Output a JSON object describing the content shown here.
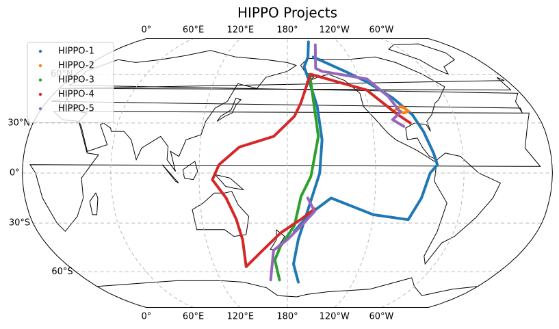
{
  "chart_data": {
    "type": "map",
    "title": "HIPPO Projects",
    "xticks": [
      {
        "value": 0,
        "label": "0°"
      },
      {
        "value": 60,
        "label": "60°E"
      },
      {
        "value": 120,
        "label": "120°E"
      },
      {
        "value": 180,
        "label": "180°"
      },
      {
        "value": -120,
        "label": "120°W"
      },
      {
        "value": -60,
        "label": "60°W"
      }
    ],
    "yticks": [
      {
        "value": 60,
        "label": "60°N"
      },
      {
        "value": 30,
        "label": "30°N"
      },
      {
        "value": 0,
        "label": "0°"
      },
      {
        "value": -30,
        "label": "30°S"
      },
      {
        "value": -60,
        "label": "60°S"
      }
    ],
    "grid": true,
    "legend": "upper left",
    "series": [
      {
        "name": "HIPPO-1",
        "color": "#1f77b4",
        "lon": [
          -155,
          -160,
          -165,
          -162,
          -158,
          -156,
          -158,
          -165,
          -172,
          -175,
          -170,
          null,
          -155,
          -130,
          -115,
          -100,
          -90,
          -85,
          -80,
          -78,
          -83,
          -88,
          -95,
          -120,
          -150,
          -165,
          -175
        ],
        "lat": [
          85,
          72,
          65,
          55,
          40,
          20,
          0,
          -20,
          -40,
          -55,
          -67,
          null,
          72,
          62,
          55,
          45,
          35,
          25,
          12,
          5,
          0,
          -15,
          -28,
          -25,
          -15,
          -25,
          -35
        ]
      },
      {
        "name": "HIPPO-2",
        "color": "#ff7f0e",
        "lon": [
          -101,
          -97,
          -94,
          -92,
          -96,
          -99
        ],
        "lat": [
          38,
          40,
          39,
          37,
          36,
          38
        ]
      },
      {
        "name": "HIPPO-3",
        "color": "#2ca02c",
        "lon": [
          -161,
          -158.5,
          -164,
          -170.6,
          -175,
          174.8,
          170,
          173
        ],
        "lat": [
          60,
          22,
          -2,
          -14,
          -31.5,
          -44,
          -52.5,
          -65.5
        ]
      },
      {
        "name": "HIPPO-4",
        "color": "#d62728",
        "lon": [
          -161,
          -170,
          -175,
          170.5,
          147,
          133.5,
          129,
          138,
          144,
          147,
          146,
          159,
          175,
          -170,
          -161,
          null,
          -160,
          -118,
          -101,
          -93
        ],
        "lat": [
          59,
          42,
          34,
          22,
          15.6,
          5,
          -4,
          -15,
          -27.5,
          -40,
          -56.7,
          -48,
          -36,
          -27.5,
          -21.5,
          null,
          60,
          50,
          35.5,
          30
        ]
      },
      {
        "name": "HIPPO-5",
        "color": "#9467bd",
        "lon": [
          -148.5,
          -155,
          -150,
          -114,
          -103,
          -98,
          -105,
          -98,
          null,
          -166,
          -161,
          -170,
          180,
          169.4,
          165
        ],
        "lat": [
          82,
          64,
          62,
          57,
          46,
          36.5,
          32,
          28,
          null,
          -15,
          -23,
          -31.5,
          -40,
          -46.5,
          -65.5
        ]
      }
    ]
  }
}
